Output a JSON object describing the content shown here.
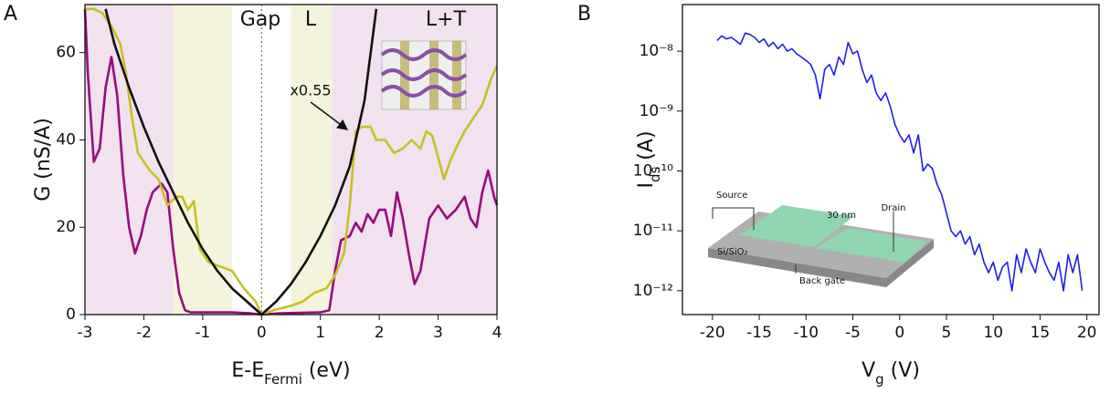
{
  "chart_data": [
    {
      "type": "line",
      "panel_label": "A",
      "xlabel": [
        "E-E",
        "Fermi",
        " (eV)"
      ],
      "ylabel": [
        "G (nS/A)"
      ],
      "xlim": [
        -3,
        4
      ],
      "ylim": [
        0,
        71
      ],
      "xticks": [
        -3,
        -2,
        -1,
        0,
        1,
        2,
        3,
        4
      ],
      "yticks": [
        0,
        20,
        40,
        60
      ],
      "background": "#f2e1ef",
      "regions": [
        {
          "xlim": [
            -1.5,
            -0.5
          ],
          "color": "#f4f4dc"
        },
        {
          "xlim": [
            -0.5,
            0.5
          ],
          "color": "#ffffff"
        },
        {
          "xlim": [
            0.5,
            1.2
          ],
          "color": "#f4f4dc"
        }
      ],
      "region_labels": [
        "Gap",
        "L",
        "L+T"
      ],
      "annotation": "x0.55",
      "series": [
        {
          "name": "magenta",
          "color": "#990a7e",
          "x": [
            -3,
            -2.95,
            -2.85,
            -2.75,
            -2.65,
            -2.55,
            -2.45,
            -2.35,
            -2.25,
            -2.15,
            -2.05,
            -1.95,
            -1.85,
            -1.7,
            -1.6,
            -1.5,
            -1.4,
            -1.3,
            -1.2,
            -1,
            -0.5,
            -0.2,
            0,
            0.3,
            1,
            1.15,
            1.25,
            1.35,
            1.5,
            1.6,
            1.7,
            1.8,
            1.9,
            2,
            2.1,
            2.2,
            2.3,
            2.4,
            2.5,
            2.6,
            2.7,
            2.85,
            3,
            3.15,
            3.3,
            3.45,
            3.55,
            3.65,
            3.75,
            3.85,
            3.95,
            4
          ],
          "values": [
            70,
            55,
            35,
            38,
            52,
            59,
            50,
            32,
            20,
            14,
            18,
            24,
            28,
            30,
            28,
            15,
            5,
            1,
            0.5,
            0.5,
            0.5,
            0.3,
            0,
            0.3,
            0.5,
            1,
            10,
            17,
            18,
            21,
            19,
            23,
            21,
            24,
            24,
            18,
            28,
            22,
            14,
            7,
            10,
            22,
            25,
            22,
            24,
            27,
            22,
            20,
            28,
            33,
            27,
            25
          ]
        },
        {
          "name": "yellow",
          "color": "#c8c023",
          "x": [
            -3,
            -2.85,
            -2.7,
            -2.55,
            -2.4,
            -2.3,
            -2.2,
            -2.1,
            -2,
            -1.9,
            -1.75,
            -1.6,
            -1.45,
            -1.35,
            -1.25,
            -1.15,
            -1.05,
            -0.9,
            -0.7,
            -0.5,
            -0.3,
            -0.1,
            0,
            0.2,
            0.5,
            0.7,
            0.9,
            1.1,
            1.25,
            1.4,
            1.5,
            1.6,
            1.7,
            1.85,
            1.95,
            2.1,
            2.25,
            2.4,
            2.55,
            2.7,
            2.8,
            2.9,
            3,
            3.1,
            3.2,
            3.3,
            3.45,
            3.6,
            3.75,
            3.9,
            4
          ],
          "values": [
            70,
            70,
            69,
            66,
            62,
            55,
            45,
            37,
            35,
            33,
            31,
            25,
            27,
            27,
            24,
            26,
            15,
            12,
            11,
            10,
            6,
            3,
            0,
            1,
            2,
            3,
            5,
            6,
            9,
            14,
            25,
            42,
            43,
            43,
            40,
            40,
            37,
            38,
            40,
            38,
            42,
            41,
            36,
            31,
            35,
            38,
            42,
            45,
            48,
            54,
            57
          ]
        },
        {
          "name": "black",
          "color": "#111111",
          "x": [
            -2.65,
            -2.5,
            -2.25,
            -2,
            -1.75,
            -1.5,
            -1.25,
            -1,
            -0.75,
            -0.5,
            -0.25,
            0,
            0.25,
            0.5,
            0.75,
            1,
            1.25,
            1.5,
            1.75,
            1.95
          ],
          "values": [
            70,
            62,
            52,
            43,
            35,
            28,
            21,
            15,
            10,
            6,
            3,
            0,
            3,
            7,
            12,
            18,
            25,
            34,
            49,
            70
          ]
        }
      ]
    },
    {
      "type": "line",
      "panel_label": "B",
      "xlabel": [
        "V",
        "g",
        " (V)"
      ],
      "ylabel": [
        "I",
        "ds",
        " (A)"
      ],
      "log_y": true,
      "xlim": [
        -23.2,
        21.3
      ],
      "ylim": [
        4e-13,
        6e-08
      ],
      "xticks": [
        -20,
        -15,
        -10,
        -5,
        0,
        5,
        10,
        15,
        20
      ],
      "yticks": [
        {
          "value": 1e-08,
          "label": "10⁻⁸"
        },
        {
          "value": 1e-09,
          "label": "10⁻⁹"
        },
        {
          "value": 1e-10,
          "label": "10⁻¹⁰"
        },
        {
          "value": 1e-11,
          "label": "10⁻¹¹"
        },
        {
          "value": 1e-12,
          "label": "10⁻¹²"
        }
      ],
      "inset_labels": [
        "Source",
        "30 nm",
        "Drain",
        "Si/SiO₂",
        "Back gate"
      ],
      "series": [
        {
          "name": "Ids",
          "color": "#1f1fe8",
          "x": [
            -19.5,
            -19,
            -18.5,
            -18,
            -17.5,
            -17,
            -16.5,
            -16,
            -15.5,
            -15,
            -14.5,
            -14,
            -13.5,
            -13,
            -12.5,
            -12,
            -11.5,
            -11,
            -10.5,
            -10,
            -9.5,
            -9,
            -8.5,
            -8,
            -7.5,
            -7,
            -6.5,
            -6,
            -5.5,
            -5,
            -4.5,
            -4,
            -3.5,
            -3,
            -2.5,
            -2,
            -1.5,
            -1,
            -0.5,
            0,
            0.5,
            1,
            1.5,
            2,
            2.5,
            3,
            3.5,
            4,
            4.5,
            5,
            5.5,
            6,
            6.5,
            7,
            7.5,
            8,
            8.5,
            9,
            9.5,
            10,
            10.5,
            11,
            11.5,
            12,
            12.5,
            13,
            13.5,
            14,
            14.5,
            15,
            15.5,
            16,
            16.5,
            17,
            17.5,
            18,
            18.5,
            19,
            19.5
          ],
          "values": [
            1.5e-08,
            1.8e-08,
            1.6e-08,
            1.7e-08,
            1.5e-08,
            1.3e-08,
            2e-08,
            1.9e-08,
            1.7e-08,
            1.4e-08,
            1.6e-08,
            1.2e-08,
            1.4e-08,
            1.1e-08,
            1.3e-08,
            1e-08,
            1.1e-08,
            9e-09,
            8e-09,
            7e-09,
            6e-09,
            4e-09,
            1.6e-09,
            5e-09,
            6e-09,
            4e-09,
            8e-09,
            6e-09,
            1.4e-08,
            9e-09,
            1e-08,
            5e-09,
            3e-09,
            4e-09,
            2e-09,
            1.5e-09,
            2e-09,
            1.2e-09,
            6e-10,
            4e-10,
            3e-10,
            4e-10,
            2e-10,
            4e-10,
            1e-10,
            1.3e-10,
            1.1e-10,
            6e-11,
            4e-11,
            2e-11,
            1e-11,
            8e-12,
            1e-11,
            6e-12,
            8e-12,
            4e-12,
            6e-12,
            3e-12,
            2e-12,
            3e-12,
            1.5e-12,
            2.5e-12,
            3e-12,
            1e-12,
            4e-12,
            2e-12,
            5e-12,
            3e-12,
            2e-12,
            5e-12,
            3e-12,
            2e-12,
            1.5e-12,
            3e-12,
            1e-12,
            4e-12,
            2e-12,
            4e-12,
            1e-12
          ]
        }
      ]
    }
  ]
}
